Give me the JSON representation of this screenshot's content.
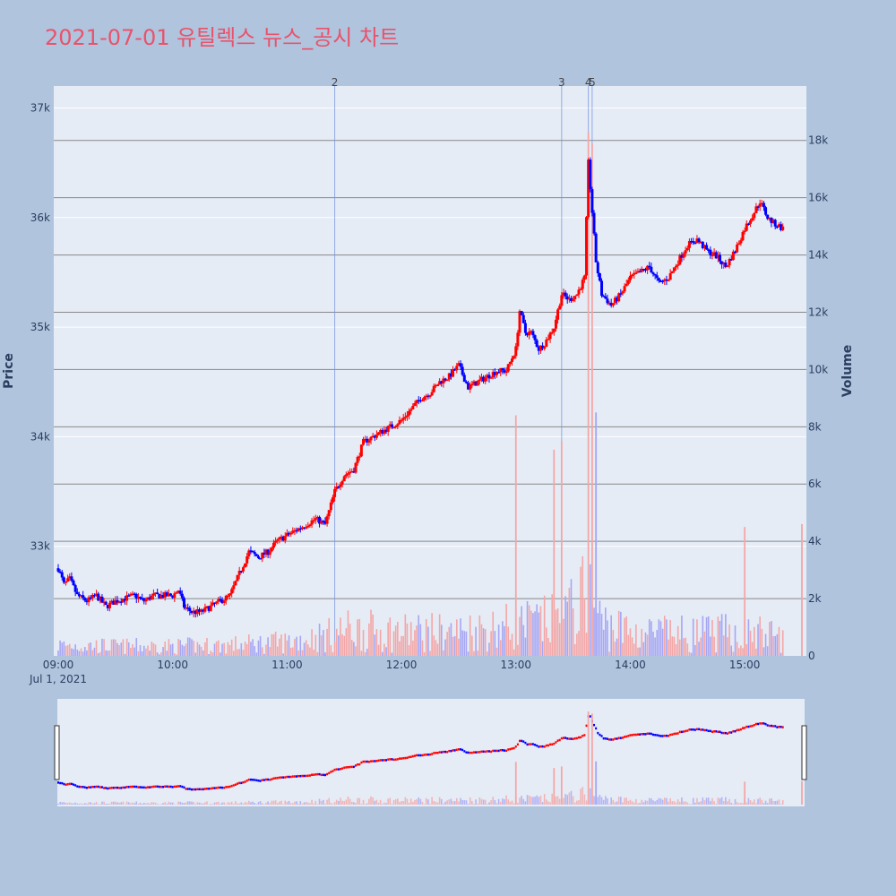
{
  "colors": {
    "background": "#b0c4de",
    "plot_bg": "#e5ecf6",
    "title": "#e8536b",
    "up": "#ff0000",
    "down": "#0000ff",
    "up_volume": "#f4a6a6",
    "down_volume": "#a6a6f4",
    "grid": "#ffffff",
    "volume_grid": "#888888",
    "marker_line": "#6f8ee0"
  },
  "chart_data": {
    "type": "candlestick",
    "title": "2021-07-01 유틸렉스 뉴스_공시 차트",
    "y_label": "Price",
    "y2_label": "Volume",
    "x_tick_labels": [
      "09:00",
      "10:00",
      "11:00",
      "12:00",
      "13:00",
      "14:00",
      "15:00"
    ],
    "x_date_label": "Jul 1, 2021",
    "x_range": [
      "09:00",
      "15:30"
    ],
    "y_range": [
      32000,
      37200
    ],
    "y_ticks": [
      33000,
      34000,
      35000,
      36000,
      37000
    ],
    "y_tick_labels": [
      "33k",
      "34k",
      "35k",
      "36k",
      "37k"
    ],
    "y2_range": [
      0,
      19900
    ],
    "y2_ticks": [
      0,
      2000,
      4000,
      6000,
      8000,
      10000,
      12000,
      14000,
      16000,
      18000
    ],
    "y2_tick_labels": [
      "0",
      "2k",
      "4k",
      "6k",
      "8k",
      "10k",
      "12k",
      "14k",
      "16k",
      "18k"
    ],
    "annotations": [
      {
        "time": "11:25",
        "label": "2"
      },
      {
        "time": "13:24",
        "label": "3"
      },
      {
        "time": "13:38",
        "label": "4"
      },
      {
        "time": "13:40",
        "label": "5"
      }
    ],
    "price_path": [
      [
        "09:00",
        32800
      ],
      [
        "09:03",
        32650
      ],
      [
        "09:06",
        32700
      ],
      [
        "09:10",
        32550
      ],
      [
        "09:15",
        32500
      ],
      [
        "09:20",
        32550
      ],
      [
        "09:25",
        32450
      ],
      [
        "09:30",
        32500
      ],
      [
        "09:40",
        32550
      ],
      [
        "09:45",
        32500
      ],
      [
        "09:50",
        32550
      ],
      [
        "10:00",
        32550
      ],
      [
        "10:03",
        32600
      ],
      [
        "10:06",
        32450
      ],
      [
        "10:10",
        32400
      ],
      [
        "10:15",
        32400
      ],
      [
        "10:20",
        32450
      ],
      [
        "10:25",
        32500
      ],
      [
        "10:30",
        32550
      ],
      [
        "10:35",
        32750
      ],
      [
        "10:40",
        32950
      ],
      [
        "10:45",
        32900
      ],
      [
        "10:50",
        32950
      ],
      [
        "10:55",
        33050
      ],
      [
        "11:00",
        33100
      ],
      [
        "11:05",
        33150
      ],
      [
        "11:10",
        33200
      ],
      [
        "11:15",
        33250
      ],
      [
        "11:20",
        33200
      ],
      [
        "11:25",
        33500
      ],
      [
        "11:30",
        33650
      ],
      [
        "11:35",
        33700
      ],
      [
        "11:40",
        33950
      ],
      [
        "11:45",
        34000
      ],
      [
        "11:50",
        34050
      ],
      [
        "11:55",
        34100
      ],
      [
        "12:00",
        34150
      ],
      [
        "12:05",
        34250
      ],
      [
        "12:10",
        34350
      ],
      [
        "12:15",
        34400
      ],
      [
        "12:20",
        34500
      ],
      [
        "12:25",
        34550
      ],
      [
        "12:30",
        34650
      ],
      [
        "12:35",
        34450
      ],
      [
        "12:40",
        34500
      ],
      [
        "12:45",
        34550
      ],
      [
        "12:50",
        34600
      ],
      [
        "12:55",
        34600
      ],
      [
        "13:00",
        34800
      ],
      [
        "13:02",
        35150
      ],
      [
        "13:05",
        34950
      ],
      [
        "13:08",
        34950
      ],
      [
        "13:12",
        34800
      ],
      [
        "13:15",
        34850
      ],
      [
        "13:20",
        35000
      ],
      [
        "13:24",
        35300
      ],
      [
        "13:28",
        35250
      ],
      [
        "13:32",
        35300
      ],
      [
        "13:36",
        35450
      ],
      [
        "13:38",
        36500
      ],
      [
        "13:40",
        36050
      ],
      [
        "13:42",
        35600
      ],
      [
        "13:45",
        35300
      ],
      [
        "13:50",
        35200
      ],
      [
        "13:55",
        35300
      ],
      [
        "14:00",
        35450
      ],
      [
        "14:05",
        35500
      ],
      [
        "14:10",
        35550
      ],
      [
        "14:15",
        35400
      ],
      [
        "14:20",
        35450
      ],
      [
        "14:25",
        35600
      ],
      [
        "14:30",
        35750
      ],
      [
        "14:35",
        35800
      ],
      [
        "14:40",
        35700
      ],
      [
        "14:45",
        35650
      ],
      [
        "14:50",
        35550
      ],
      [
        "14:55",
        35700
      ],
      [
        "15:00",
        35900
      ],
      [
        "15:05",
        36050
      ],
      [
        "15:08",
        36150
      ],
      [
        "15:12",
        36000
      ],
      [
        "15:15",
        35950
      ],
      [
        "15:20",
        35900
      ]
    ],
    "volume_profile": [
      [
        "09:00",
        500
      ],
      [
        "09:30",
        450
      ],
      [
        "10:00",
        450
      ],
      [
        "10:30",
        500
      ],
      [
        "11:00",
        650
      ],
      [
        "11:25",
        1000
      ],
      [
        "11:30",
        1200
      ],
      [
        "12:00",
        1100
      ],
      [
        "12:30",
        1100
      ],
      [
        "13:00",
        1400
      ],
      [
        "13:24",
        1600
      ],
      [
        "13:38",
        2800
      ],
      [
        "13:45",
        1500
      ],
      [
        "14:00",
        1100
      ],
      [
        "14:30",
        1000
      ],
      [
        "15:00",
        1100
      ],
      [
        "15:20",
        900
      ]
    ],
    "volume_spikes": [
      [
        "13:00",
        8400,
        "up"
      ],
      [
        "13:20",
        7200,
        "up"
      ],
      [
        "13:24",
        7500,
        "up"
      ],
      [
        "13:38",
        18300,
        "up"
      ],
      [
        "13:40",
        17900,
        "up"
      ],
      [
        "13:42",
        8500,
        "down"
      ],
      [
        "15:00",
        4500,
        "up"
      ],
      [
        "15:30",
        4600,
        "up"
      ]
    ]
  }
}
